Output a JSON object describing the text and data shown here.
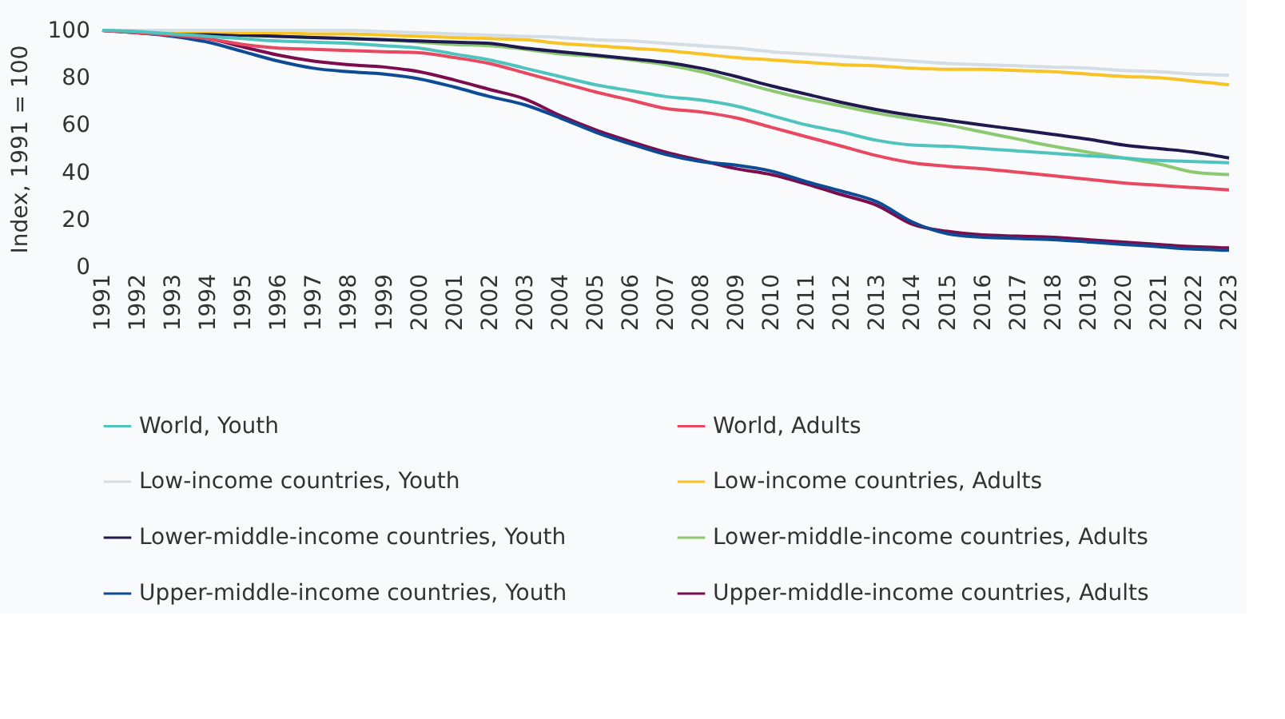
{
  "chart_data": {
    "type": "line",
    "ylabel": "Index, 1991 = 100",
    "x": [
      1991,
      1992,
      1993,
      1994,
      1995,
      1996,
      1997,
      1998,
      1999,
      2000,
      2001,
      2002,
      2003,
      2004,
      2005,
      2006,
      2007,
      2008,
      2009,
      2010,
      2011,
      2012,
      2013,
      2014,
      2015,
      2016,
      2017,
      2018,
      2019,
      2020,
      2021,
      2022,
      2023
    ],
    "xlim": [
      1991,
      2023
    ],
    "xticks": [
      1991,
      1992,
      1993,
      1994,
      1995,
      1996,
      1997,
      1998,
      1999,
      2000,
      2001,
      2002,
      2003,
      2004,
      2005,
      2006,
      2007,
      2008,
      2009,
      2010,
      2011,
      2012,
      2013,
      2014,
      2015,
      2016,
      2017,
      2018,
      2019,
      2020,
      2021,
      2022,
      2023
    ],
    "ylim": [
      0,
      100
    ],
    "yticks": [
      0,
      20,
      40,
      60,
      80,
      100
    ],
    "grid": false,
    "legend": "bottom",
    "marker": "none",
    "line_style": "solid",
    "series": [
      {
        "name": "World, Youth",
        "color": "#4fc4bf",
        "values": [
          100,
          99.5,
          98.5,
          97.5,
          96.5,
          95.5,
          95,
          94.5,
          93.5,
          92.5,
          90,
          87.5,
          84,
          80.5,
          77,
          74.5,
          72,
          70.5,
          68,
          64,
          60,
          57,
          53.5,
          51.5,
          51,
          50,
          49,
          48,
          47,
          46,
          45,
          44.5,
          44
        ]
      },
      {
        "name": "World, Adults",
        "color": "#e84860",
        "values": [
          100,
          99,
          98,
          96.5,
          94,
          92.5,
          92,
          91.5,
          91,
          90.5,
          88.5,
          86,
          82,
          78,
          74,
          70.5,
          67,
          65.5,
          63,
          59,
          55,
          51,
          47,
          44,
          42.5,
          41.5,
          40,
          38.5,
          37,
          35.5,
          34.5,
          33.5,
          32.5
        ]
      },
      {
        "name": "Low-income countries, Youth",
        "color": "#d3dde3",
        "values": [
          100,
          100,
          100,
          100,
          100,
          100,
          100,
          100,
          99.5,
          99,
          98.5,
          98,
          97.5,
          97,
          96,
          95.5,
          94.5,
          93.5,
          92.5,
          91,
          90,
          89,
          88,
          87,
          86,
          85.5,
          85,
          84.5,
          84,
          83,
          82.5,
          81.5,
          81
        ]
      },
      {
        "name": "Low-income countries, Adults",
        "color": "#f7c325",
        "values": [
          100,
          100,
          99.5,
          99.5,
          99,
          99,
          98.5,
          98.5,
          98,
          97.5,
          97,
          96.5,
          96,
          94.5,
          93.5,
          92.5,
          91.5,
          90,
          88.5,
          87.5,
          86.5,
          85.5,
          85,
          84,
          83.5,
          83.5,
          83,
          82.5,
          81.5,
          80.5,
          80,
          78.5,
          77
        ]
      },
      {
        "name": "Lower-middle-income countries, Youth",
        "color": "#1e1a4e",
        "values": [
          100,
          99.5,
          99,
          98.5,
          98,
          97.5,
          97,
          96.5,
          96,
          95.5,
          95,
          94.5,
          92.5,
          91,
          89.5,
          88,
          86.5,
          84,
          80.5,
          76.5,
          73,
          69.5,
          66.5,
          64,
          62,
          60,
          58,
          56,
          54,
          51.5,
          50,
          48.5,
          46
        ]
      },
      {
        "name": "Lower-middle-income countries, Adults",
        "color": "#8dc971",
        "values": [
          100,
          99.5,
          99,
          98.5,
          98,
          97.5,
          97,
          96.5,
          96,
          95,
          94,
          93.5,
          92,
          90,
          89,
          87.5,
          85.5,
          82.5,
          78.5,
          74.5,
          71,
          68,
          65,
          62.5,
          60,
          57,
          54,
          51,
          48.5,
          46,
          43.5,
          40,
          39
        ]
      },
      {
        "name": "Upper-middle-income countries, Youth",
        "color": "#0d4c94",
        "values": [
          100,
          99,
          97.5,
          95,
          91,
          87,
          84,
          82.5,
          81.5,
          79.5,
          76,
          72,
          68.5,
          63,
          57,
          52,
          47.5,
          44.5,
          43,
          40.5,
          36,
          32,
          27.5,
          19,
          14,
          12.5,
          12,
          11.5,
          10.5,
          9.5,
          8.5,
          7.5,
          7
        ]
      },
      {
        "name": "Upper-middle-income countries, Adults",
        "color": "#7b0d4f",
        "values": [
          100,
          99,
          98,
          96.5,
          93,
          89.5,
          87,
          85.5,
          84.5,
          82.5,
          79,
          75,
          71,
          64,
          58,
          53,
          48.5,
          45,
          41.5,
          39,
          35,
          30.5,
          26,
          18,
          15,
          13.5,
          13,
          12.5,
          11.5,
          10.5,
          9.5,
          8.5,
          8
        ]
      }
    ]
  }
}
